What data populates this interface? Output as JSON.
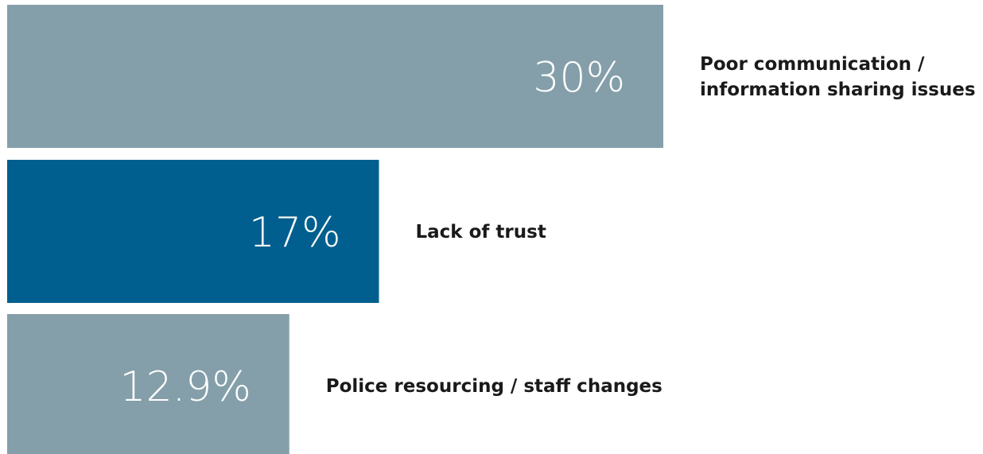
{
  "chart_data": {
    "type": "bar",
    "orientation": "horizontal",
    "categories": [
      "Poor communication / information sharing issues",
      "Lack of trust",
      "Police resourcing / staff changes"
    ],
    "label_lines": [
      [
        "Poor communication /",
        "information sharing issues"
      ],
      [
        "Lack of trust"
      ],
      [
        "Police resourcing / staff changes"
      ]
    ],
    "values": [
      30,
      17,
      12.9
    ],
    "value_labels": [
      "30%",
      "17%",
      "12.9%"
    ],
    "colors": [
      "#849fa9",
      "#005f8e",
      "#849fa9"
    ],
    "xlim": [
      0,
      30
    ],
    "grid": false,
    "legend": "none"
  }
}
